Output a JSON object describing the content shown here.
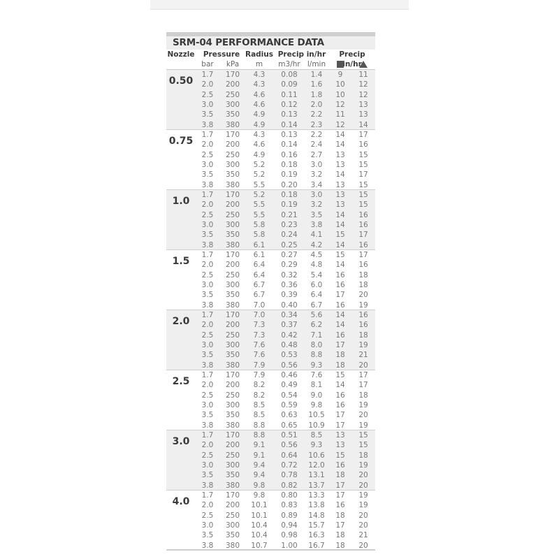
{
  "title": "SRM-04 PERFORMANCE DATA",
  "headers": {
    "nozzle": "Nozzle",
    "pressure": "Pressure",
    "radius": "Radius",
    "precip1": "Precip in/hr",
    "precip2": "Precip in/hr",
    "bar": "bar",
    "kpa": "kPa",
    "m": "m",
    "m3hr": "m3/hr",
    "lmin": "l/min",
    "square_icon": "square-icon",
    "triangle_icon": "triangle-icon"
  },
  "groups": [
    {
      "nozzle": "0.50",
      "rows": [
        [
          "1.7",
          "170",
          "4.3",
          "0.08",
          "1.4",
          "9",
          "11"
        ],
        [
          "2.0",
          "200",
          "4.3",
          "0.09",
          "1.6",
          "10",
          "12"
        ],
        [
          "2.5",
          "250",
          "4.6",
          "0.11",
          "1.8",
          "10",
          "12"
        ],
        [
          "3.0",
          "300",
          "4.6",
          "0.12",
          "2.0",
          "12",
          "13"
        ],
        [
          "3.5",
          "350",
          "4.9",
          "0.13",
          "2.2",
          "11",
          "13"
        ],
        [
          "3.8",
          "380",
          "4.9",
          "0.14",
          "2.3",
          "12",
          "14"
        ]
      ]
    },
    {
      "nozzle": "0.75",
      "rows": [
        [
          "1.7",
          "170",
          "4.3",
          "0.13",
          "2.2",
          "14",
          "17"
        ],
        [
          "2.0",
          "200",
          "4.6",
          "0.14",
          "2.4",
          "14",
          "16"
        ],
        [
          "2.5",
          "250",
          "4.9",
          "0.16",
          "2.7",
          "13",
          "15"
        ],
        [
          "3.0",
          "300",
          "5.2",
          "0.18",
          "3.0",
          "13",
          "15"
        ],
        [
          "3.5",
          "350",
          "5.2",
          "0.19",
          "3.2",
          "14",
          "17"
        ],
        [
          "3.8",
          "380",
          "5.5",
          "0.20",
          "3.4",
          "13",
          "15"
        ]
      ]
    },
    {
      "nozzle": "1.0",
      "rows": [
        [
          "1.7",
          "170",
          "5.2",
          "0.18",
          "3.0",
          "13",
          "15"
        ],
        [
          "2.0",
          "200",
          "5.5",
          "0.19",
          "3.2",
          "13",
          "15"
        ],
        [
          "2.5",
          "250",
          "5.5",
          "0.21",
          "3.5",
          "14",
          "16"
        ],
        [
          "3.0",
          "300",
          "5.8",
          "0.23",
          "3.8",
          "14",
          "16"
        ],
        [
          "3.5",
          "350",
          "5.8",
          "0.24",
          "4.1",
          "15",
          "17"
        ],
        [
          "3.8",
          "380",
          "6.1",
          "0.25",
          "4.2",
          "14",
          "16"
        ]
      ]
    },
    {
      "nozzle": "1.5",
      "rows": [
        [
          "1.7",
          "170",
          "6.1",
          "0.27",
          "4.5",
          "15",
          "17"
        ],
        [
          "2.0",
          "200",
          "6.4",
          "0.29",
          "4.8",
          "14",
          "16"
        ],
        [
          "2.5",
          "250",
          "6.4",
          "0.32",
          "5.4",
          "16",
          "18"
        ],
        [
          "3.0",
          "300",
          "6.7",
          "0.36",
          "6.0",
          "16",
          "18"
        ],
        [
          "3.5",
          "350",
          "6.7",
          "0.39",
          "6.4",
          "17",
          "20"
        ],
        [
          "3.8",
          "380",
          "7.0",
          "0.40",
          "6.7",
          "16",
          "19"
        ]
      ]
    },
    {
      "nozzle": "2.0",
      "rows": [
        [
          "1.7",
          "170",
          "7.0",
          "0.34",
          "5.6",
          "14",
          "16"
        ],
        [
          "2.0",
          "200",
          "7.3",
          "0.37",
          "6.2",
          "14",
          "16"
        ],
        [
          "2.5",
          "250",
          "7.3",
          "0.42",
          "7.1",
          "16",
          "18"
        ],
        [
          "3.0",
          "300",
          "7.6",
          "0.48",
          "8.0",
          "17",
          "19"
        ],
        [
          "3.5",
          "350",
          "7.6",
          "0.53",
          "8.8",
          "18",
          "21"
        ],
        [
          "3.8",
          "380",
          "7.9",
          "0.56",
          "9.3",
          "18",
          "20"
        ]
      ]
    },
    {
      "nozzle": "2.5",
      "rows": [
        [
          "1.7",
          "170",
          "7.9",
          "0.46",
          "7.6",
          "15",
          "17"
        ],
        [
          "2.0",
          "200",
          "8.2",
          "0.49",
          "8.1",
          "14",
          "17"
        ],
        [
          "2.5",
          "250",
          "8.2",
          "0.54",
          "9.0",
          "16",
          "18"
        ],
        [
          "3.0",
          "300",
          "8.5",
          "0.59",
          "9.8",
          "16",
          "19"
        ],
        [
          "3.5",
          "350",
          "8.5",
          "0.63",
          "10.5",
          "17",
          "20"
        ],
        [
          "3.8",
          "380",
          "8.8",
          "0.65",
          "10.9",
          "17",
          "19"
        ]
      ]
    },
    {
      "nozzle": "3.0",
      "rows": [
        [
          "1.7",
          "170",
          "8.8",
          "0.51",
          "8.5",
          "13",
          "15"
        ],
        [
          "2.0",
          "200",
          "9.1",
          "0.56",
          "9.3",
          "13",
          "15"
        ],
        [
          "2.5",
          "250",
          "9.1",
          "0.64",
          "10.6",
          "15",
          "18"
        ],
        [
          "3.0",
          "300",
          "9.4",
          "0.72",
          "12.0",
          "16",
          "19"
        ],
        [
          "3.5",
          "350",
          "9.4",
          "0.78",
          "13.1",
          "18",
          "20"
        ],
        [
          "3.8",
          "380",
          "9.8",
          "0.82",
          "13.7",
          "17",
          "20"
        ]
      ]
    },
    {
      "nozzle": "4.0",
      "rows": [
        [
          "1.7",
          "170",
          "9.8",
          "0.80",
          "13.3",
          "17",
          "19"
        ],
        [
          "2.0",
          "200",
          "10.1",
          "0.83",
          "13.8",
          "16",
          "19"
        ],
        [
          "2.5",
          "250",
          "10.1",
          "0.89",
          "14.8",
          "18",
          "20"
        ],
        [
          "3.0",
          "300",
          "10.4",
          "0.94",
          "15.7",
          "17",
          "20"
        ],
        [
          "3.5",
          "350",
          "10.4",
          "0.98",
          "16.3",
          "18",
          "21"
        ],
        [
          "3.8",
          "380",
          "10.7",
          "1.00",
          "16.7",
          "18",
          "20"
        ]
      ]
    }
  ]
}
